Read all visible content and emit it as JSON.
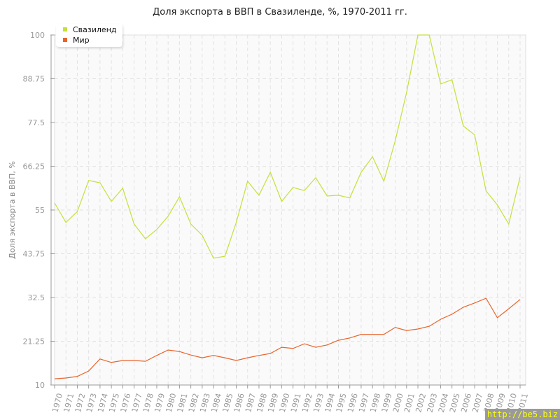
{
  "chart_data": {
    "type": "line",
    "title": "Доля экспорта в ВВП в Свазиленде, %, 1970-2011 гг.",
    "xlabel": "",
    "ylabel": "Доля экспорта в ВВП, %",
    "ylim": [
      10,
      100
    ],
    "yticks": [
      "10",
      "21.25",
      "32.5",
      "43.75",
      "55",
      "66.25",
      "77.5",
      "88.75",
      "100"
    ],
    "grid": true,
    "legend_position": "top-left",
    "categories": [
      "1970",
      "1971",
      "1972",
      "1973",
      "1974",
      "1975",
      "1976",
      "1977",
      "1978",
      "1979",
      "1980",
      "1981",
      "1982",
      "1983",
      "1984",
      "1985",
      "1986",
      "1987",
      "1988",
      "1989",
      "1990",
      "1991",
      "1992",
      "1993",
      "1994",
      "1995",
      "1996",
      "1997",
      "1998",
      "1999",
      "2000",
      "2001",
      "2002",
      "2003",
      "2004",
      "2005",
      "2006",
      "2007",
      "2008",
      "2009",
      "2010",
      "2011"
    ],
    "series": [
      {
        "name": "Свазиленд",
        "color": "#c5e03a",
        "values": [
          56.8,
          51.8,
          54.6,
          62.6,
          62.0,
          57.2,
          60.6,
          51.4,
          47.6,
          50.0,
          53.4,
          58.4,
          51.4,
          48.5,
          42.6,
          43.1,
          51.8,
          62.4,
          58.8,
          64.7,
          57.2,
          60.8,
          60.0,
          63.3,
          58.6,
          58.8,
          58.1,
          64.7,
          68.7,
          62.4,
          72.8,
          85.2,
          100,
          100,
          87.4,
          88.5,
          76.6,
          74.3,
          59.9,
          56.3,
          51.4,
          63.5
        ]
      },
      {
        "name": "Мир",
        "color": "#e8642c",
        "values": [
          11.6,
          11.8,
          12.2,
          13.6,
          16.7,
          15.8,
          16.3,
          16.3,
          16.1,
          17.6,
          19.0,
          18.6,
          17.7,
          17.0,
          17.6,
          17.0,
          16.3,
          17.0,
          17.6,
          18.1,
          19.7,
          19.4,
          20.6,
          19.7,
          20.3,
          21.5,
          22.1,
          23.0,
          23.0,
          23.0,
          24.8,
          24.0,
          24.4,
          25.1,
          26.9,
          28.2,
          30.0,
          31.1,
          32.3,
          27.3,
          29.6,
          32.0
        ]
      }
    ]
  },
  "watermark": "http://be5.biz"
}
